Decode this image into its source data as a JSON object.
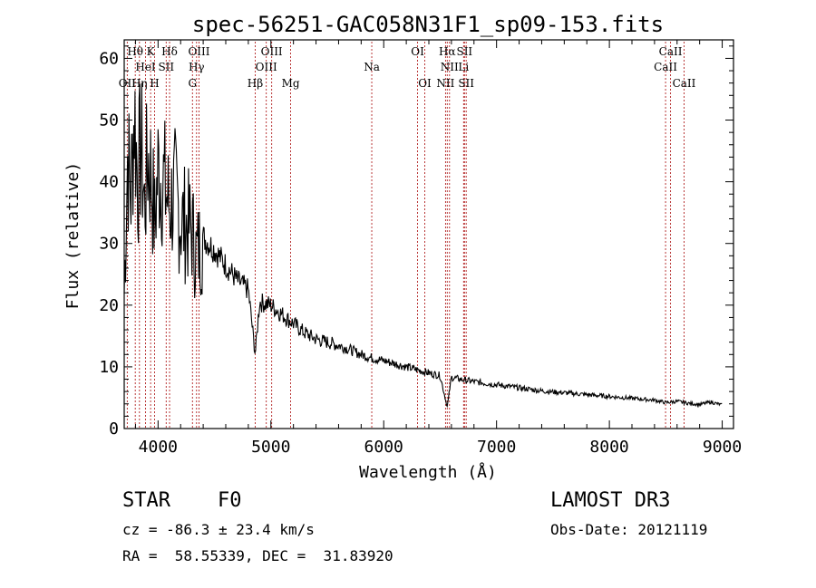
{
  "chart_data": {
    "type": "line",
    "title": "spec-56251-GAC058N31F1_sp09-153.fits",
    "xlabel": "Wavelength (Å)",
    "ylabel": "Flux (relative)",
    "xlim": [
      3700,
      9100
    ],
    "ylim": [
      0,
      63
    ],
    "xticks": [
      4000,
      5000,
      6000,
      7000,
      8000,
      9000
    ],
    "yticks": [
      0,
      10,
      20,
      30,
      40,
      50,
      60
    ],
    "series": [
      {
        "name": "spectrum",
        "x": [
          3700,
          3730,
          3760,
          3790,
          3820,
          3850,
          3880,
          3910,
          3940,
          3970,
          4000,
          4050,
          4100,
          4150,
          4200,
          4250,
          4300,
          4340,
          4400,
          4500,
          4600,
          4700,
          4800,
          4861,
          4900,
          5000,
          5100,
          5200,
          5300,
          5400,
          5500,
          5600,
          5700,
          5800,
          5900,
          6000,
          6100,
          6200,
          6300,
          6400,
          6500,
          6563,
          6600,
          6700,
          6800,
          7000,
          7200,
          7400,
          7600,
          7800,
          8000,
          8200,
          8400,
          8500,
          8600,
          8700,
          8800,
          8900,
          9000
        ],
        "y": [
          22,
          44,
          38,
          52,
          40,
          46,
          36,
          44,
          41,
          33,
          42,
          40,
          36,
          38,
          34,
          33,
          32,
          28,
          31,
          29,
          26.5,
          24,
          22.5,
          12,
          20.5,
          20,
          18.5,
          17,
          15.5,
          14.5,
          14,
          13.5,
          12.8,
          12,
          11.4,
          11,
          10.5,
          10,
          9.5,
          9,
          8.6,
          3.5,
          8.3,
          7.9,
          7.6,
          7.1,
          6.6,
          6.1,
          5.8,
          5.5,
          5.2,
          4.9,
          4.6,
          4.2,
          4.4,
          4.1,
          3.9,
          4.3,
          3.8
        ]
      }
    ],
    "spectral_lines": [
      {
        "name": "OII",
        "wave": 3727,
        "row": 3
      },
      {
        "name": "Hθ",
        "wave": 3798,
        "row": 1
      },
      {
        "name": "Hη",
        "wave": 3835,
        "row": 3
      },
      {
        "name": "HeI",
        "wave": 3889,
        "row": 2
      },
      {
        "name": "K",
        "wave": 3934,
        "row": 1
      },
      {
        "name": "H",
        "wave": 3969,
        "row": 3
      },
      {
        "name": "SII",
        "wave": 4072,
        "row": 2
      },
      {
        "name": "Hδ",
        "wave": 4102,
        "row": 1
      },
      {
        "name": "G",
        "wave": 4305,
        "row": 3
      },
      {
        "name": "Hγ",
        "wave": 4341,
        "row": 2
      },
      {
        "name": "OIII",
        "wave": 4363,
        "row": 1
      },
      {
        "name": "Hβ",
        "wave": 4861,
        "row": 3
      },
      {
        "name": "OIII",
        "wave": 4959,
        "row": 2
      },
      {
        "name": "OIII",
        "wave": 5007,
        "row": 1
      },
      {
        "name": "Mg",
        "wave": 5175,
        "row": 3
      },
      {
        "name": "Na",
        "wave": 5894,
        "row": 2
      },
      {
        "name": "OI",
        "wave": 6300,
        "row": 1
      },
      {
        "name": "OI",
        "wave": 6364,
        "row": 3
      },
      {
        "name": "NII",
        "wave": 6548,
        "row": 3
      },
      {
        "name": "Hα",
        "wave": 6563,
        "row": 1
      },
      {
        "name": "NII",
        "wave": 6583,
        "row": 2
      },
      {
        "name": "Li",
        "wave": 6708,
        "row": 2
      },
      {
        "name": "SII",
        "wave": 6716,
        "row": 1
      },
      {
        "name": "SII",
        "wave": 6731,
        "row": 3
      },
      {
        "name": "CaII",
        "wave": 8498,
        "row": 2
      },
      {
        "name": "CaII",
        "wave": 8542,
        "row": 1
      },
      {
        "name": "CaII",
        "wave": 8662,
        "row": 3
      }
    ],
    "colors": {
      "line_marker": "#b22222",
      "spectrum": "#000000"
    }
  },
  "info": {
    "object_type": "STAR",
    "subclass": "F0",
    "survey": "LAMOST DR3",
    "cz": "cz = -86.3 ± 23.4 km/s",
    "obs_date": "Obs-Date: 20121119",
    "coords": "RA =  58.55339, DEC =  31.83920"
  }
}
